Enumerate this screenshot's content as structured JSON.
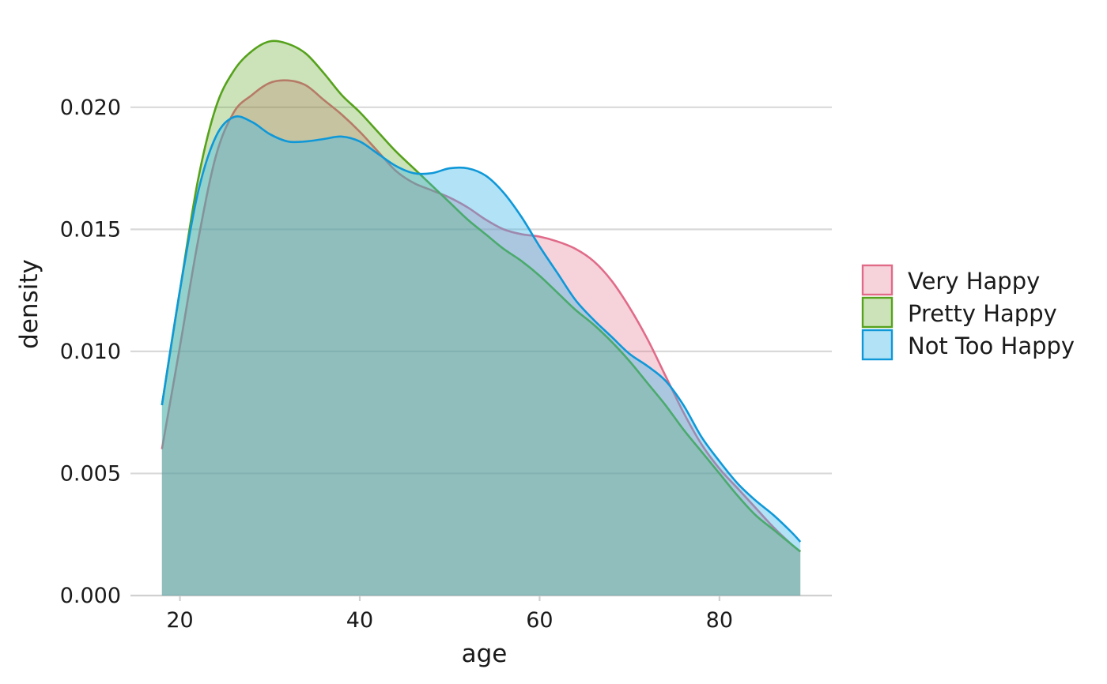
{
  "chart_data": {
    "type": "area",
    "xlabel": "age",
    "ylabel": "density",
    "xlim": [
      14.5,
      92.5
    ],
    "ylim": [
      0,
      0.0231
    ],
    "x_ticks": [
      20,
      40,
      60,
      80
    ],
    "x_tick_labels": [
      "20",
      "40",
      "60",
      "80"
    ],
    "y_ticks": [
      0,
      0.005,
      0.01,
      0.015,
      0.02
    ],
    "y_tick_labels": [
      "0.000",
      "0.005",
      "0.010",
      "0.015",
      "0.020"
    ],
    "grid": "horizontal",
    "legend_position": "right",
    "series": [
      {
        "name": "Very Happy",
        "line_color": "#e06b88",
        "fill_color": "#e06b88",
        "fill_opacity": 0.3,
        "points": [
          [
            18,
            0.006
          ],
          [
            20,
            0.0102
          ],
          [
            22,
            0.0145
          ],
          [
            24,
            0.018
          ],
          [
            26,
            0.0198
          ],
          [
            28,
            0.0205
          ],
          [
            30,
            0.021
          ],
          [
            32,
            0.0211
          ],
          [
            34,
            0.0209
          ],
          [
            36,
            0.0203
          ],
          [
            38,
            0.0197
          ],
          [
            40,
            0.019
          ],
          [
            42,
            0.0182
          ],
          [
            44,
            0.0174
          ],
          [
            46,
            0.0169
          ],
          [
            48,
            0.0166
          ],
          [
            50,
            0.0163
          ],
          [
            52,
            0.0159
          ],
          [
            54,
            0.0154
          ],
          [
            56,
            0.015
          ],
          [
            58,
            0.0148
          ],
          [
            60,
            0.0147
          ],
          [
            62,
            0.0145
          ],
          [
            64,
            0.0142
          ],
          [
            66,
            0.0137
          ],
          [
            68,
            0.0129
          ],
          [
            70,
            0.0118
          ],
          [
            72,
            0.0105
          ],
          [
            74,
            0.009
          ],
          [
            76,
            0.0075
          ],
          [
            78,
            0.0062
          ],
          [
            80,
            0.0052
          ],
          [
            82,
            0.0044
          ],
          [
            84,
            0.0036
          ],
          [
            86,
            0.0028
          ],
          [
            88,
            0.0021
          ],
          [
            89,
            0.0018
          ]
        ]
      },
      {
        "name": "Pretty Happy",
        "line_color": "#56a21c",
        "fill_color": "#56a21c",
        "fill_opacity": 0.3,
        "points": [
          [
            18,
            0.0078
          ],
          [
            20,
            0.0125
          ],
          [
            22,
            0.017
          ],
          [
            24,
            0.02
          ],
          [
            26,
            0.0215
          ],
          [
            28,
            0.0223
          ],
          [
            30,
            0.0227
          ],
          [
            32,
            0.0226
          ],
          [
            34,
            0.0222
          ],
          [
            36,
            0.0214
          ],
          [
            38,
            0.0205
          ],
          [
            40,
            0.0198
          ],
          [
            42,
            0.019
          ],
          [
            44,
            0.0182
          ],
          [
            46,
            0.0175
          ],
          [
            48,
            0.0168
          ],
          [
            50,
            0.0161
          ],
          [
            52,
            0.0154
          ],
          [
            54,
            0.0148
          ],
          [
            56,
            0.0142
          ],
          [
            58,
            0.0137
          ],
          [
            60,
            0.0131
          ],
          [
            62,
            0.0124
          ],
          [
            64,
            0.0117
          ],
          [
            66,
            0.0111
          ],
          [
            68,
            0.0104
          ],
          [
            70,
            0.0096
          ],
          [
            72,
            0.0087
          ],
          [
            74,
            0.0078
          ],
          [
            76,
            0.0068
          ],
          [
            78,
            0.0059
          ],
          [
            80,
            0.005
          ],
          [
            82,
            0.0041
          ],
          [
            84,
            0.0033
          ],
          [
            86,
            0.0027
          ],
          [
            88,
            0.0021
          ],
          [
            89,
            0.0018
          ]
        ]
      },
      {
        "name": "Not Too Happy",
        "line_color": "#0f98d8",
        "fill_color": "#3db6e8",
        "fill_opacity": 0.4,
        "points": [
          [
            18,
            0.0078
          ],
          [
            20,
            0.0125
          ],
          [
            22,
            0.0165
          ],
          [
            24,
            0.0188
          ],
          [
            26,
            0.0196
          ],
          [
            28,
            0.0194
          ],
          [
            30,
            0.0189
          ],
          [
            32,
            0.0186
          ],
          [
            34,
            0.0186
          ],
          [
            36,
            0.0187
          ],
          [
            38,
            0.0188
          ],
          [
            40,
            0.0186
          ],
          [
            42,
            0.0181
          ],
          [
            44,
            0.0176
          ],
          [
            46,
            0.0173
          ],
          [
            48,
            0.0173
          ],
          [
            50,
            0.0175
          ],
          [
            52,
            0.0175
          ],
          [
            54,
            0.0172
          ],
          [
            56,
            0.0165
          ],
          [
            58,
            0.0155
          ],
          [
            60,
            0.0143
          ],
          [
            62,
            0.0132
          ],
          [
            64,
            0.0121
          ],
          [
            66,
            0.0113
          ],
          [
            68,
            0.0106
          ],
          [
            70,
            0.0099
          ],
          [
            72,
            0.0094
          ],
          [
            74,
            0.0088
          ],
          [
            76,
            0.0078
          ],
          [
            78,
            0.0065
          ],
          [
            80,
            0.0055
          ],
          [
            82,
            0.0046
          ],
          [
            84,
            0.0039
          ],
          [
            86,
            0.0033
          ],
          [
            88,
            0.0026
          ],
          [
            89,
            0.0022
          ]
        ]
      }
    ]
  }
}
